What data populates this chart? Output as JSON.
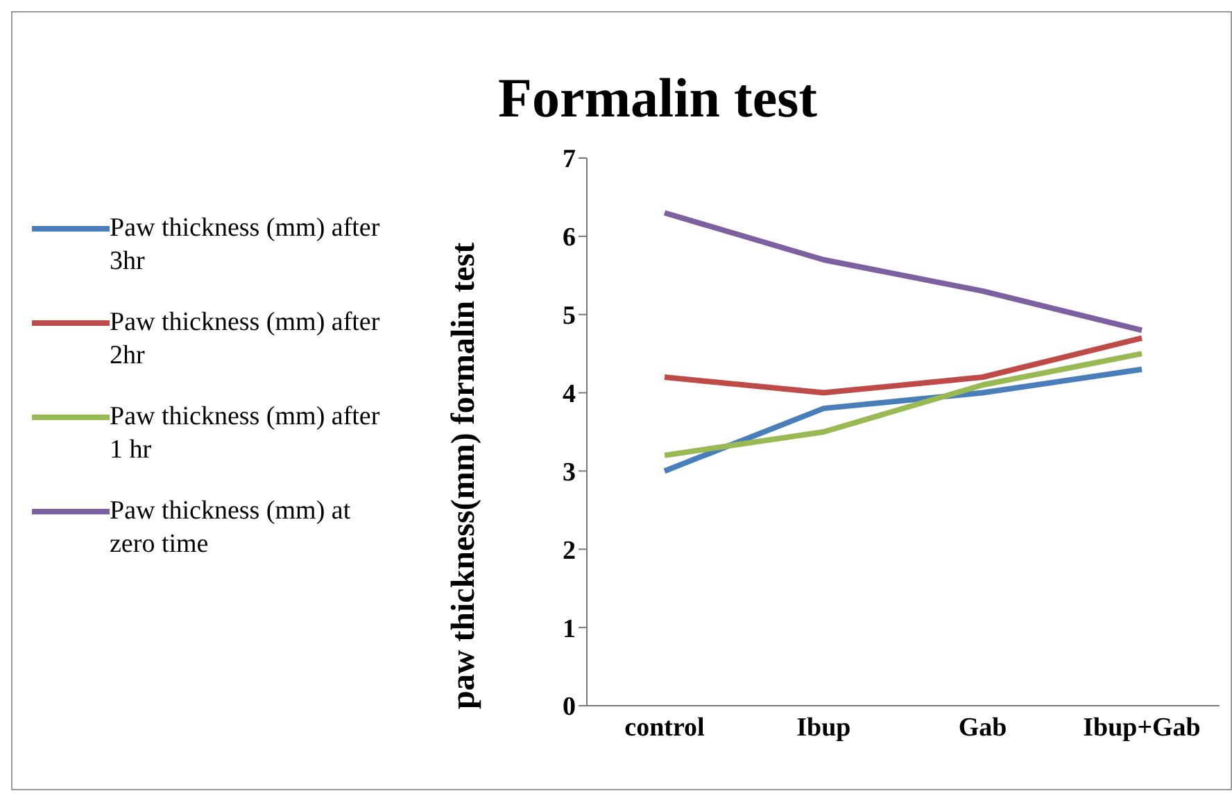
{
  "chart_data": {
    "type": "line",
    "title": "Formalin test",
    "ylabel": "paw thickness(mm) formalin test",
    "categories": [
      "control",
      "Ibup",
      "Gab",
      "Ibup+Gab"
    ],
    "series": [
      {
        "name": "Paw thickness (mm) after 3hr",
        "color": "#4a7ebb",
        "values": [
          3.0,
          3.8,
          4.0,
          4.3
        ]
      },
      {
        "name": "Paw thickness (mm) after 2hr",
        "color": "#be4b48",
        "values": [
          4.2,
          4.0,
          4.2,
          4.7
        ]
      },
      {
        "name": "Paw thickness (mm) after 1 hr",
        "color": "#98b954",
        "values": [
          3.2,
          3.5,
          4.1,
          4.5
        ]
      },
      {
        "name": "Paw thickness (mm) at zero time",
        "color": "#7d60a0",
        "values": [
          6.3,
          5.7,
          5.3,
          4.8
        ]
      }
    ],
    "ylim": [
      0,
      7
    ],
    "yticks": [
      0,
      1,
      2,
      3,
      4,
      5,
      6,
      7
    ],
    "grid": false,
    "legend": "left",
    "marker": "none",
    "line_style": "solid"
  }
}
